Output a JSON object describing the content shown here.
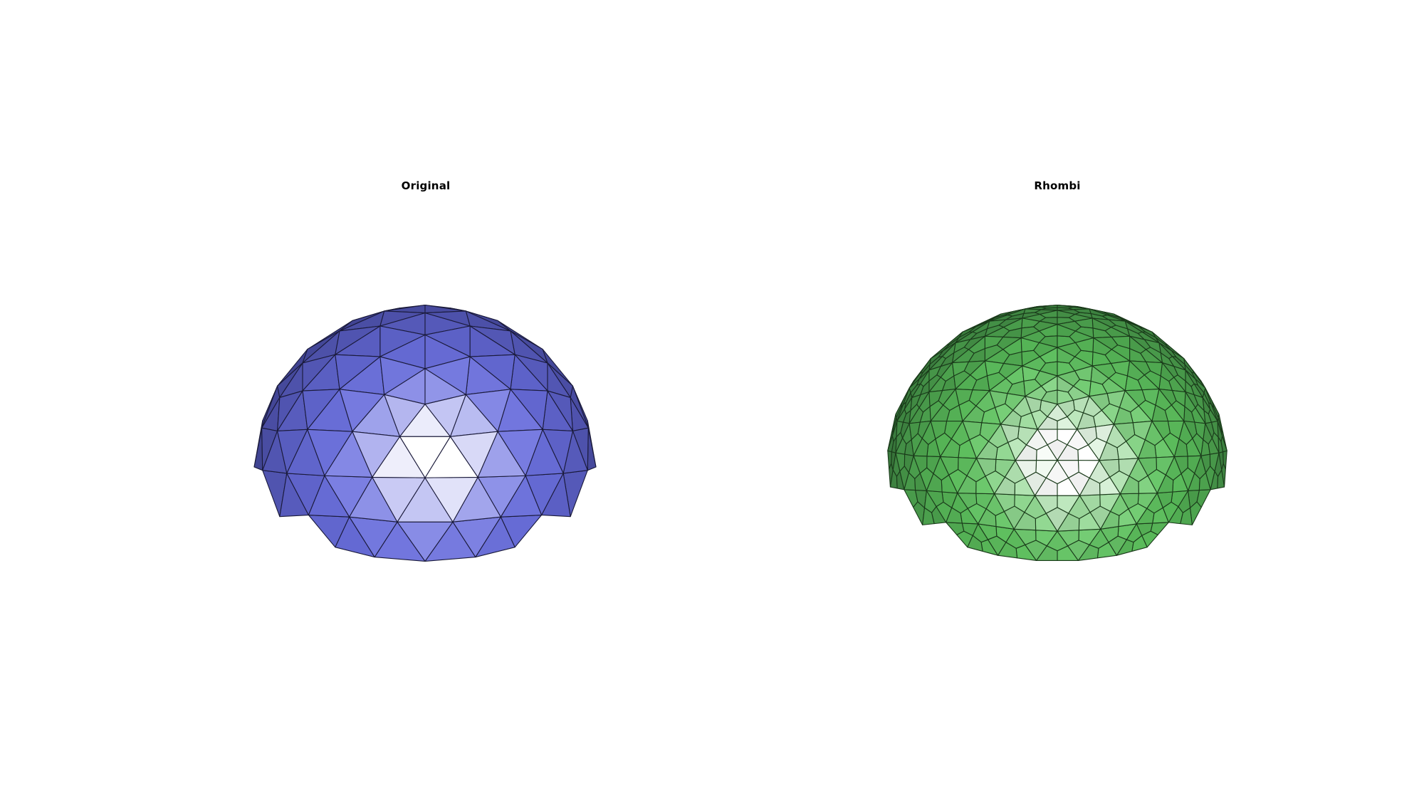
{
  "panels": [
    {
      "title": "Original",
      "tiling": "triangles",
      "colors": {
        "base": "#6a6fe0",
        "highlight": "#ffffff",
        "edge": "#1a1a3a"
      }
    },
    {
      "title": "Rhombi",
      "tiling": "rhombi",
      "colors": {
        "base": "#5cc45c",
        "highlight": "#ffffff",
        "edge": "#1a3a1a"
      }
    }
  ]
}
